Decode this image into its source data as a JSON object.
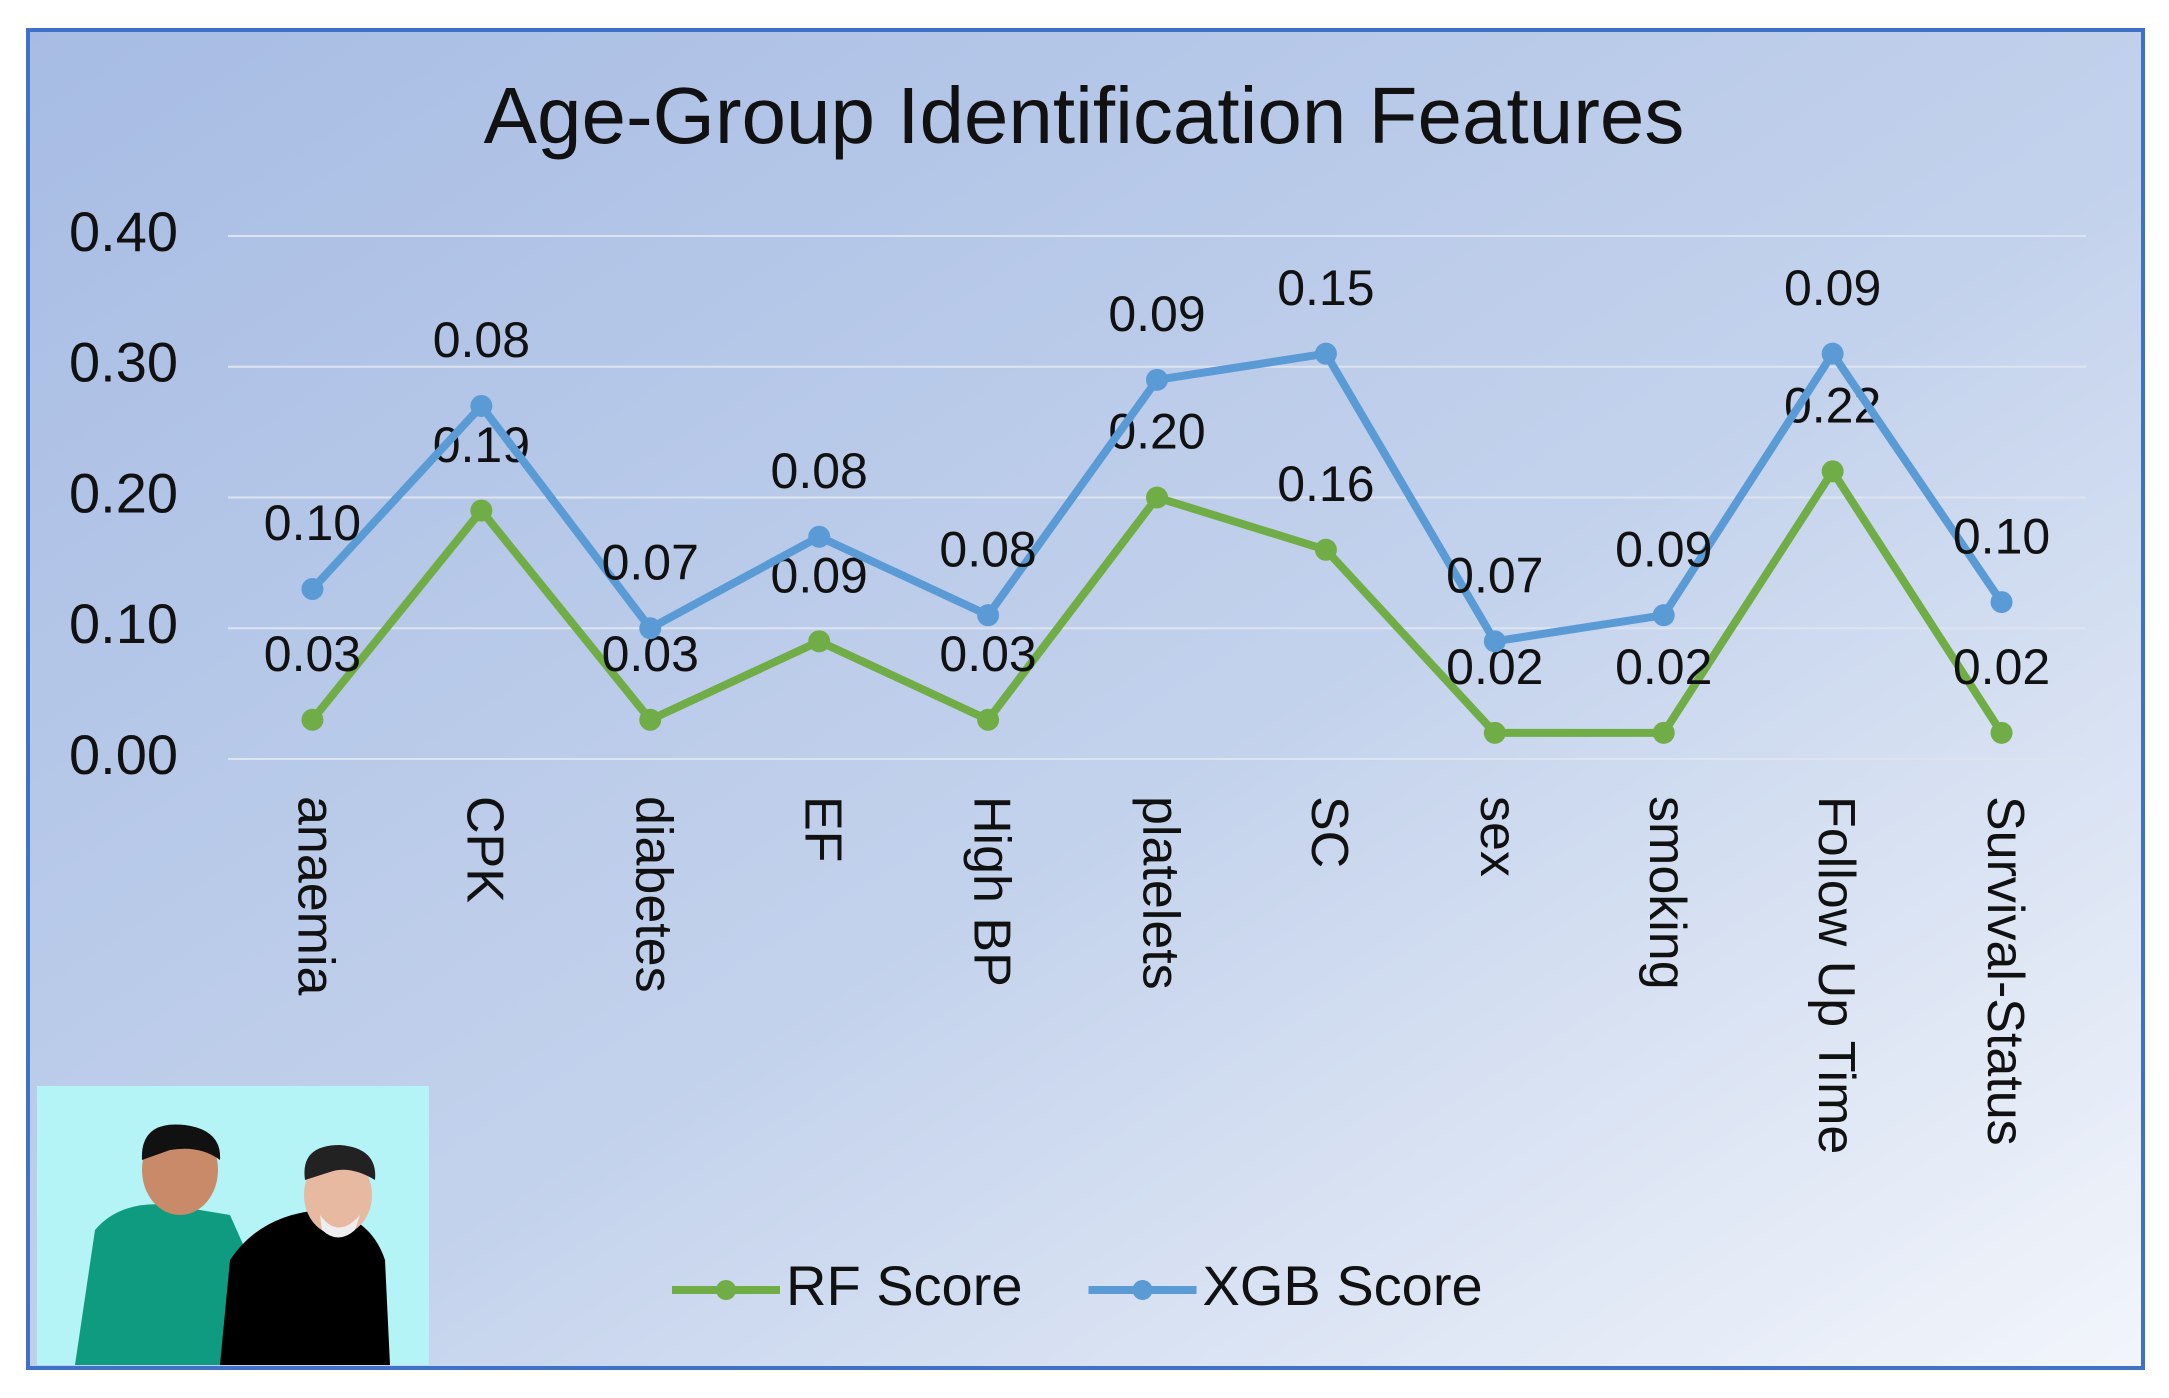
{
  "chart_data": {
    "type": "line",
    "stacked": true,
    "title": "Age-Group Identification Features",
    "categories": [
      "anaemia",
      "CPK",
      "diabetes",
      "EF",
      "High BP",
      "platelets",
      "SC",
      "sex",
      "smoking",
      "Follow Up Time",
      "Survival-Status"
    ],
    "series": [
      {
        "name": "RF Score",
        "color": "#70ad47",
        "values": [
          0.03,
          0.19,
          0.03,
          0.09,
          0.03,
          0.2,
          0.16,
          0.02,
          0.02,
          0.22,
          0.02
        ],
        "value_labels": [
          "0.03",
          "0.19",
          "0.03",
          "0.09",
          "0.03",
          "0.20",
          "0.16",
          "0.02",
          "0.02",
          "0.22",
          "0.02"
        ]
      },
      {
        "name": "XGB Score",
        "color": "#5b9bd5",
        "values": [
          0.1,
          0.08,
          0.07,
          0.08,
          0.08,
          0.09,
          0.15,
          0.07,
          0.09,
          0.09,
          0.1
        ],
        "value_labels": [
          "0.10",
          "0.08",
          "0.07",
          "0.08",
          "0.08",
          "0.09",
          "0.15",
          "0.07",
          "0.09",
          "0.09",
          "0.10"
        ]
      }
    ],
    "ylim": [
      0,
      0.4
    ],
    "yticks": [
      {
        "value": 0,
        "label": "0.00"
      },
      {
        "value": 0.1,
        "label": "0.10"
      },
      {
        "value": 0.2,
        "label": "0.20"
      },
      {
        "value": 0.3,
        "label": "0.30"
      },
      {
        "value": 0.4,
        "label": "0.40"
      }
    ],
    "grid": true,
    "legend": "bottom"
  }
}
